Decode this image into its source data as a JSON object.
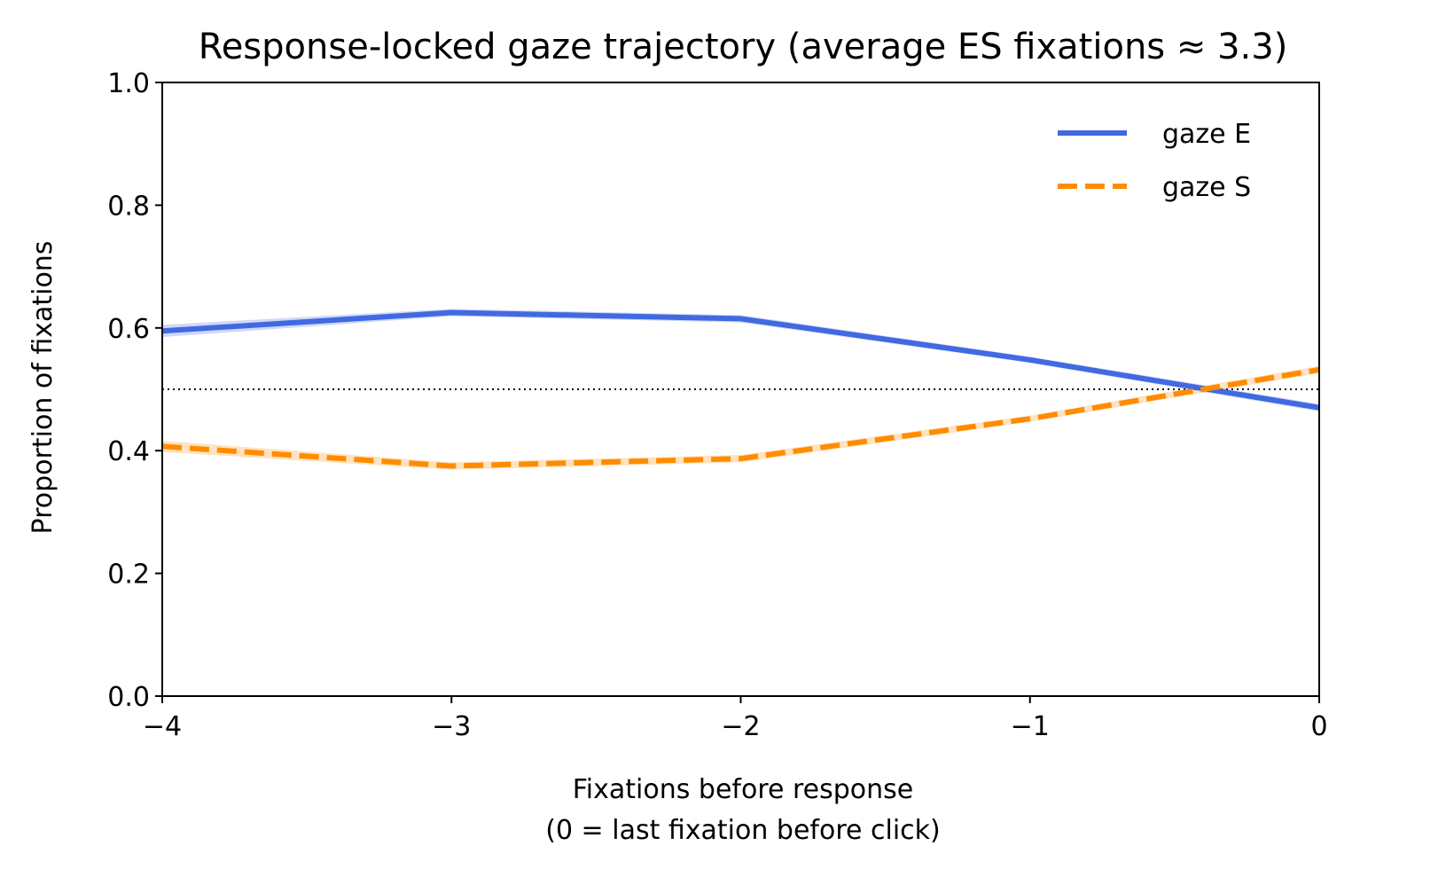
{
  "chart_data": {
    "type": "line",
    "title": "Response-locked gaze trajectory (average ES fixations ≈ 3.3)",
    "xlabel_line1": "Fixations before response",
    "xlabel_line2": "(0 = last fixation before click)",
    "ylabel": "Proportion of fixations",
    "x": [
      -4,
      -3,
      -2,
      -1,
      0
    ],
    "xlim": [
      -4,
      0
    ],
    "ylim": [
      0.0,
      1.0
    ],
    "x_ticks": [
      -4,
      -3,
      -2,
      -1,
      0
    ],
    "x_tick_labels": [
      "−4",
      "−3",
      "−2",
      "−1",
      "0"
    ],
    "y_ticks": [
      0.0,
      0.2,
      0.4,
      0.6,
      0.8,
      1.0
    ],
    "y_tick_labels": [
      "0.0",
      "0.2",
      "0.4",
      "0.6",
      "0.8",
      "1.0"
    ],
    "reference_line": {
      "y": 0.5,
      "style": "dotted",
      "color": "#000000"
    },
    "grid": false,
    "legend_position": "top-right",
    "series": [
      {
        "name": "gaze E",
        "values": [
          0.595,
          0.625,
          0.615,
          0.548,
          0.47
        ],
        "ci_lower": [
          0.585,
          0.619,
          0.609,
          0.543,
          0.464
        ],
        "ci_upper": [
          0.605,
          0.631,
          0.621,
          0.553,
          0.476
        ],
        "color": "#4169e1",
        "dash": "solid"
      },
      {
        "name": "gaze S",
        "values": [
          0.407,
          0.375,
          0.387,
          0.452,
          0.532
        ],
        "ci_lower": [
          0.398,
          0.369,
          0.381,
          0.447,
          0.526
        ],
        "ci_upper": [
          0.416,
          0.381,
          0.393,
          0.457,
          0.538
        ],
        "color": "#ff8c00",
        "dash": "dashed"
      }
    ]
  }
}
